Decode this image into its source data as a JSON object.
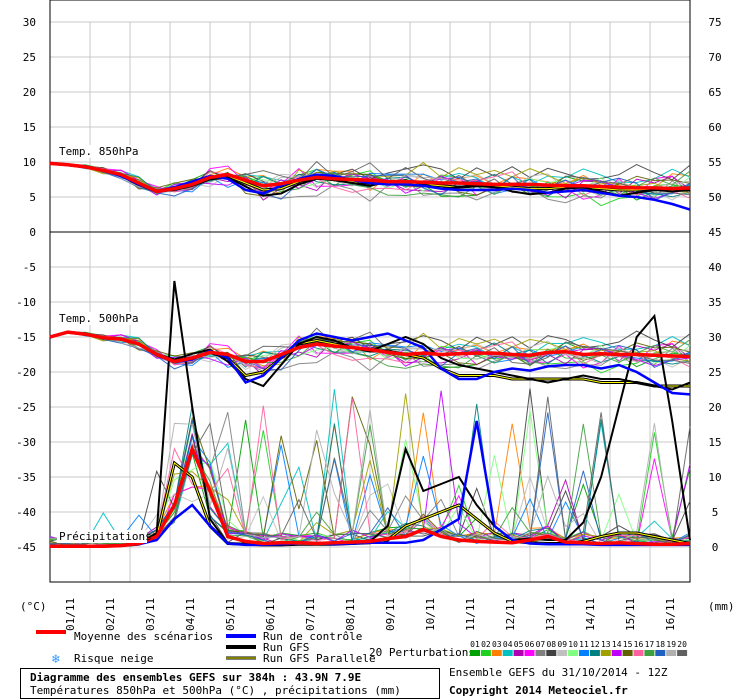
{
  "chart_data": {
    "type": "line",
    "title": "Diagramme des ensembles GEFS sur 384h : 43.9N 7.9E",
    "subtitle": "Températures 850hPa et 500hPa (°C) , précipitations (mm)",
    "run_info": "Ensemble GEFS du 31/10/2014 - 12Z",
    "copyright": "Copyright 2014 Meteociel.fr",
    "left_axis": {
      "label": "(°C)",
      "ticks": [
        30,
        25,
        20,
        15,
        10,
        5,
        0,
        -5,
        -10,
        -15,
        -20,
        -25,
        -30,
        -35,
        -40,
        -45
      ]
    },
    "right_axis": {
      "label": "(mm)",
      "ticks": [
        75,
        70,
        65,
        60,
        55,
        50,
        45,
        40,
        35,
        30,
        25,
        20,
        15,
        10,
        5,
        0
      ]
    },
    "x_ticks": [
      "01/11",
      "02/11",
      "03/11",
      "04/11",
      "05/11",
      "06/11",
      "07/11",
      "08/11",
      "09/11",
      "10/11",
      "11/11",
      "12/11",
      "13/11",
      "14/11",
      "15/11",
      "16/11"
    ],
    "grid": true,
    "panel_labels": {
      "t850": "Temp. 850hPa",
      "t500": "Temp. 500hPa",
      "precip": "Précipitations"
    },
    "legend": {
      "mean": "Moyenne des scénarios",
      "snow": "Risque neige",
      "control": "Run de contrôle",
      "gfs": "Run GFS",
      "gfs_parallel": "Run GFS Parallele",
      "perturbations": "20 Perturbations",
      "perturbation_ids": [
        "01",
        "02",
        "03",
        "04",
        "05",
        "06",
        "07",
        "08",
        "09",
        "10",
        "11",
        "12",
        "13",
        "14",
        "15",
        "16",
        "17",
        "18",
        "19",
        "20"
      ]
    },
    "colors": {
      "mean": "#ff0000",
      "control": "#0000ff",
      "gfs": "#000000",
      "gfs_parallel_outer": "#000000",
      "gfs_parallel_inner": "#ffff00",
      "perturbations": [
        "#00a000",
        "#20d020",
        "#ff8000",
        "#00c0c0",
        "#b000b0",
        "#ff00ff",
        "#808080",
        "#404040",
        "#c0c0c0",
        "#80ff80",
        "#0080ff",
        "#008080",
        "#a0a000",
        "#c000ff",
        "#606000",
        "#ff60a0",
        "#40a040",
        "#2060c0",
        "#b0b0b0",
        "#606060"
      ]
    },
    "series": [
      {
        "name": "Moyenne des scénarios",
        "panel": "t850",
        "y": [
          9.8,
          9.6,
          9.3,
          8.8,
          8.2,
          7.0,
          5.8,
          6.2,
          6.8,
          7.8,
          8.2,
          7.4,
          6.6,
          6.9,
          7.4,
          7.8,
          7.6,
          7.5,
          7.4,
          7.2,
          7.2,
          7.1,
          7.0,
          7.0,
          6.9,
          6.8,
          6.8,
          6.8,
          6.7,
          6.6,
          6.6,
          6.5,
          6.4,
          6.3,
          6.3,
          6.2,
          6.3
        ]
      },
      {
        "name": "Moyenne des scénarios",
        "panel": "t500",
        "y": [
          -15.0,
          -14.3,
          -14.6,
          -15.1,
          -15.3,
          -16.0,
          -17.5,
          -18.5,
          -18.0,
          -17.2,
          -17.5,
          -18.5,
          -18.5,
          -17.5,
          -16.5,
          -16.0,
          -16.3,
          -16.5,
          -16.8,
          -17.2,
          -17.5,
          -17.3,
          -17.5,
          -17.4,
          -17.3,
          -17.3,
          -17.5,
          -17.6,
          -17.2,
          -17.1,
          -17.5,
          -17.4,
          -17.5,
          -17.5,
          -17.6,
          -17.7,
          -17.8
        ]
      },
      {
        "name": "Moyenne des scénarios",
        "panel": "precip",
        "y": [
          0.1,
          0.1,
          0.1,
          0.1,
          0.2,
          0.5,
          1.5,
          6.0,
          14.0,
          8.0,
          1.5,
          0.8,
          0.5,
          0.6,
          0.6,
          0.5,
          0.6,
          0.7,
          0.8,
          1.2,
          1.5,
          2.5,
          1.5,
          1.0,
          0.8,
          0.7,
          0.6,
          1.0,
          1.5,
          0.7,
          0.6,
          0.5,
          0.6,
          0.5,
          0.4,
          0.4,
          0.5
        ]
      },
      {
        "name": "Run de contrôle",
        "panel": "t850",
        "y": [
          9.8,
          9.6,
          9.3,
          8.8,
          8.0,
          6.8,
          5.8,
          6.4,
          7.2,
          8.0,
          7.6,
          6.0,
          5.5,
          6.6,
          7.6,
          8.2,
          8.0,
          7.4,
          7.0,
          6.8,
          6.8,
          6.6,
          6.2,
          6.0,
          6.0,
          6.0,
          6.2,
          6.0,
          5.6,
          5.8,
          6.0,
          5.6,
          5.2,
          5.0,
          4.6,
          4.0,
          3.2
        ]
      },
      {
        "name": "Run de contrôle",
        "panel": "t500",
        "y": [
          -15.0,
          -14.3,
          -14.6,
          -15.1,
          -15.3,
          -16.0,
          -17.6,
          -18.6,
          -18.2,
          -17.0,
          -18.0,
          -21.5,
          -20.5,
          -18.0,
          -15.5,
          -14.5,
          -15.0,
          -15.5,
          -15.0,
          -14.5,
          -15.5,
          -16.5,
          -19.5,
          -21.0,
          -21.0,
          -20.0,
          -19.5,
          -19.8,
          -19.2,
          -19.0,
          -19.0,
          -19.5,
          -19.0,
          -20.0,
          -21.5,
          -23.0,
          -23.2
        ]
      },
      {
        "name": "Run de contrôle",
        "panel": "precip",
        "y": [
          0.1,
          0.1,
          0.1,
          0.1,
          0.2,
          0.4,
          1.0,
          4.0,
          6.0,
          3.0,
          0.5,
          0.3,
          0.3,
          0.4,
          0.5,
          0.5,
          0.4,
          0.5,
          0.6,
          0.6,
          0.6,
          1.0,
          2.5,
          4.0,
          18.0,
          3.0,
          1.0,
          0.5,
          0.4,
          0.4,
          0.4,
          0.3,
          0.3,
          0.3,
          0.3,
          0.3,
          0.3
        ]
      },
      {
        "name": "Run GFS",
        "panel": "t850",
        "y": [
          9.8,
          9.6,
          9.3,
          8.8,
          8.0,
          6.7,
          5.8,
          6.0,
          6.6,
          7.5,
          7.8,
          6.5,
          5.2,
          5.5,
          6.8,
          7.6,
          7.4,
          7.0,
          6.6,
          7.2,
          7.4,
          6.8,
          6.2,
          6.4,
          6.6,
          6.4,
          5.8,
          5.4,
          5.6,
          6.2,
          6.4,
          5.8,
          5.2,
          5.6,
          6.0,
          5.8,
          6.0
        ]
      },
      {
        "name": "Run GFS",
        "panel": "t500",
        "y": [
          -15.0,
          -14.3,
          -14.6,
          -15.1,
          -15.3,
          -16.0,
          -17.5,
          -18.2,
          -17.4,
          -16.8,
          -18.5,
          -21.0,
          -22.0,
          -19.0,
          -16.0,
          -15.0,
          -15.5,
          -16.5,
          -17.0,
          -16.0,
          -15.0,
          -16.0,
          -18.0,
          -19.0,
          -19.5,
          -20.0,
          -20.5,
          -21.0,
          -21.5,
          -21.0,
          -20.5,
          -21.0,
          -21.0,
          -21.5,
          -22.0,
          -22.5,
          -21.5
        ]
      },
      {
        "name": "Run GFS",
        "panel": "precip",
        "y": [
          0.1,
          0.1,
          0.1,
          0.1,
          0.2,
          0.5,
          2.0,
          38.0,
          20.0,
          4.0,
          0.5,
          0.5,
          0.3,
          0.4,
          0.6,
          0.6,
          0.6,
          0.6,
          0.8,
          3.0,
          14.0,
          8.0,
          9.0,
          10.0,
          6.0,
          3.0,
          1.0,
          1.2,
          1.0,
          1.0,
          3.5,
          10.0,
          20.0,
          30.0,
          33.0,
          18.0,
          1.0
        ]
      },
      {
        "name": "Run GFS Parallele",
        "panel": "t850",
        "y": [
          9.8,
          9.6,
          9.3,
          8.8,
          8.1,
          6.8,
          5.8,
          6.2,
          6.8,
          7.8,
          8.0,
          7.0,
          6.0,
          6.2,
          7.2,
          7.8,
          7.6,
          7.2,
          7.0,
          7.0,
          7.0,
          6.8,
          6.6,
          6.4,
          6.6,
          6.6,
          6.4,
          6.2,
          6.2,
          6.4,
          6.4,
          6.2,
          6.0,
          6.0,
          6.2,
          6.0,
          6.0
        ]
      },
      {
        "name": "Run GFS Parallele",
        "panel": "t500",
        "y": [
          -15.0,
          -14.3,
          -14.6,
          -15.1,
          -15.3,
          -16.0,
          -17.5,
          -18.4,
          -18.0,
          -17.2,
          -18.0,
          -20.5,
          -20.0,
          -18.0,
          -16.0,
          -15.5,
          -16.0,
          -16.5,
          -17.0,
          -17.0,
          -17.5,
          -18.0,
          -19.5,
          -20.5,
          -20.5,
          -20.5,
          -21.0,
          -21.0,
          -21.0,
          -21.0,
          -21.0,
          -21.5,
          -21.5,
          -21.5,
          -22.0,
          -22.0,
          -22.0
        ]
      },
      {
        "name": "Run GFS Parallele",
        "panel": "precip",
        "y": [
          0.1,
          0.1,
          0.1,
          0.1,
          0.2,
          0.4,
          1.5,
          12.0,
          10.0,
          3.0,
          0.5,
          0.4,
          0.3,
          0.3,
          0.4,
          0.4,
          0.4,
          0.5,
          0.6,
          1.0,
          3.0,
          4.0,
          5.0,
          6.0,
          4.0,
          2.0,
          0.8,
          0.6,
          0.5,
          0.5,
          0.8,
          1.5,
          2.0,
          2.0,
          1.5,
          1.0,
          0.5
        ]
      }
    ]
  }
}
